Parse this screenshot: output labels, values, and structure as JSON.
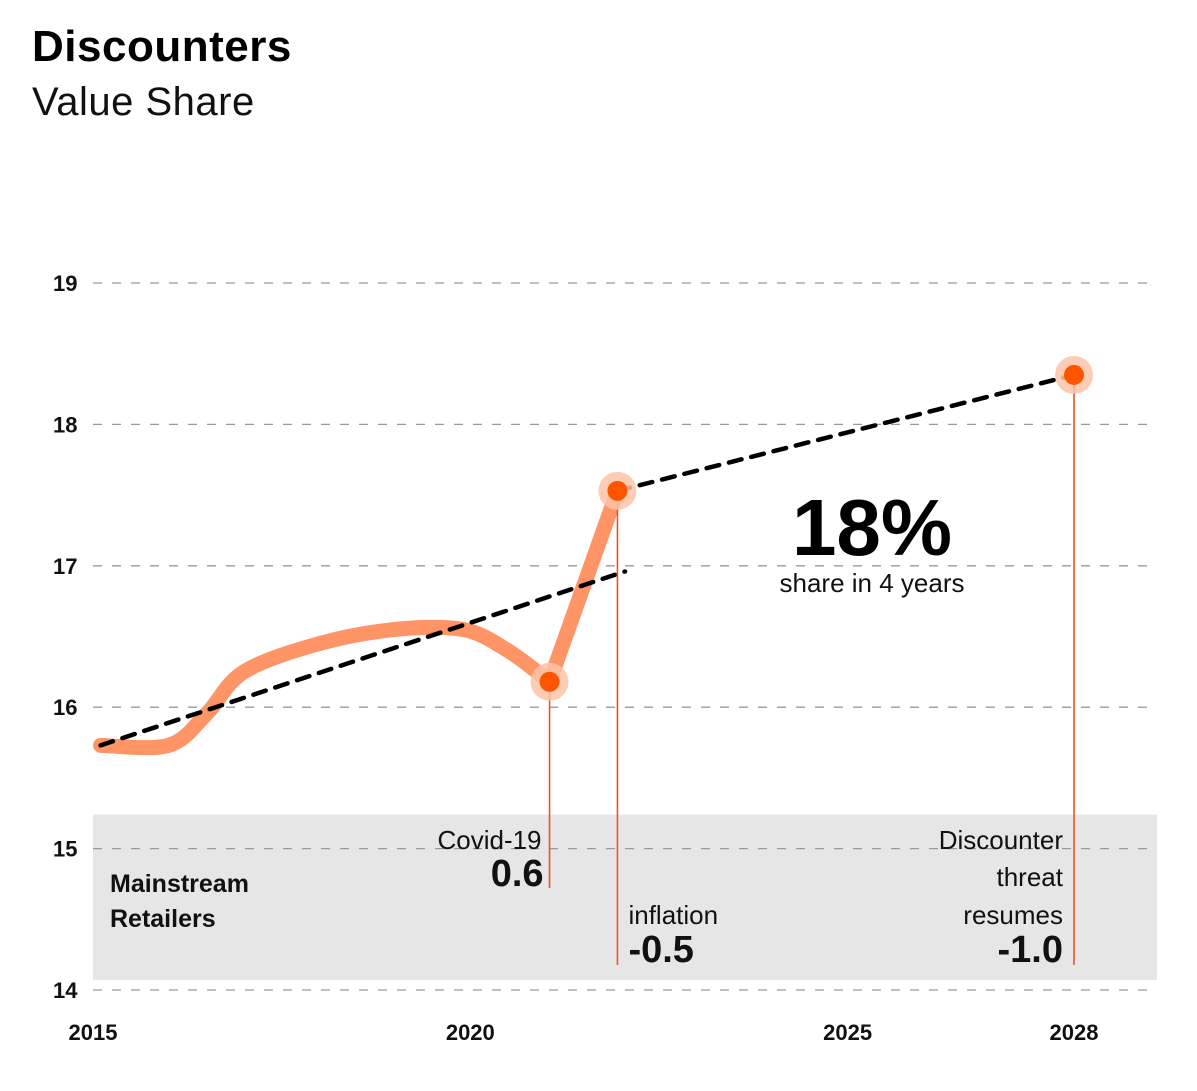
{
  "chart_data": {
    "type": "line",
    "title": "Discounters",
    "subtitle": "Value Share",
    "xlabel": "",
    "ylabel": "",
    "x_ticks": [
      "2015",
      "2020",
      "2025",
      "2028"
    ],
    "y_ticks": [
      "14",
      "15",
      "16",
      "17",
      "18",
      "19"
    ],
    "xlim": [
      2015,
      2029.1
    ],
    "ylim": [
      14,
      19
    ],
    "grid": "horizontal-dashed",
    "series": [
      {
        "color": "#FF9466",
        "x": [
          2015.1,
          2016.0,
          2016.5,
          2017.0,
          2018.0,
          2019.0,
          2019.9,
          2020.5,
          2021.05,
          2021.95
        ],
        "y": [
          15.73,
          15.73,
          15.95,
          16.25,
          16.45,
          16.55,
          16.55,
          16.4,
          16.18,
          17.53
        ]
      },
      {
        "style": "dashed",
        "color": "#000000",
        "x": [
          2015.1,
          2022.05
        ],
        "y": [
          15.73,
          16.96
        ]
      },
      {
        "style": "dashed",
        "color": "#000000",
        "x": [
          2021.95,
          2028.0
        ],
        "y": [
          17.53,
          18.35
        ]
      }
    ],
    "highlight_points": [
      {
        "x": 2021.05,
        "y": 16.18,
        "color": "#FF5500"
      },
      {
        "x": 2021.95,
        "y": 17.53,
        "color": "#FF5500"
      },
      {
        "x": 2028.0,
        "y": 18.35,
        "color": "#FF5500"
      }
    ],
    "band": {
      "y_from": 14.07,
      "y_to": 15.24,
      "color": "#E6E6E6",
      "label_line1": "Mainstream",
      "label_line2": "Retailers"
    },
    "annotations": [
      {
        "x": 2021.05,
        "label_lines": [
          "Covid-19"
        ],
        "value": "0.6"
      },
      {
        "x": 2021.95,
        "label_lines": [
          "inflation"
        ],
        "value": "-0.5"
      },
      {
        "x": 2028.0,
        "label_lines": [
          "Discounter",
          "threat",
          "resumes"
        ],
        "value": "-1.0"
      }
    ],
    "headline": {
      "value": "18%",
      "text": "share in 4 years"
    }
  }
}
